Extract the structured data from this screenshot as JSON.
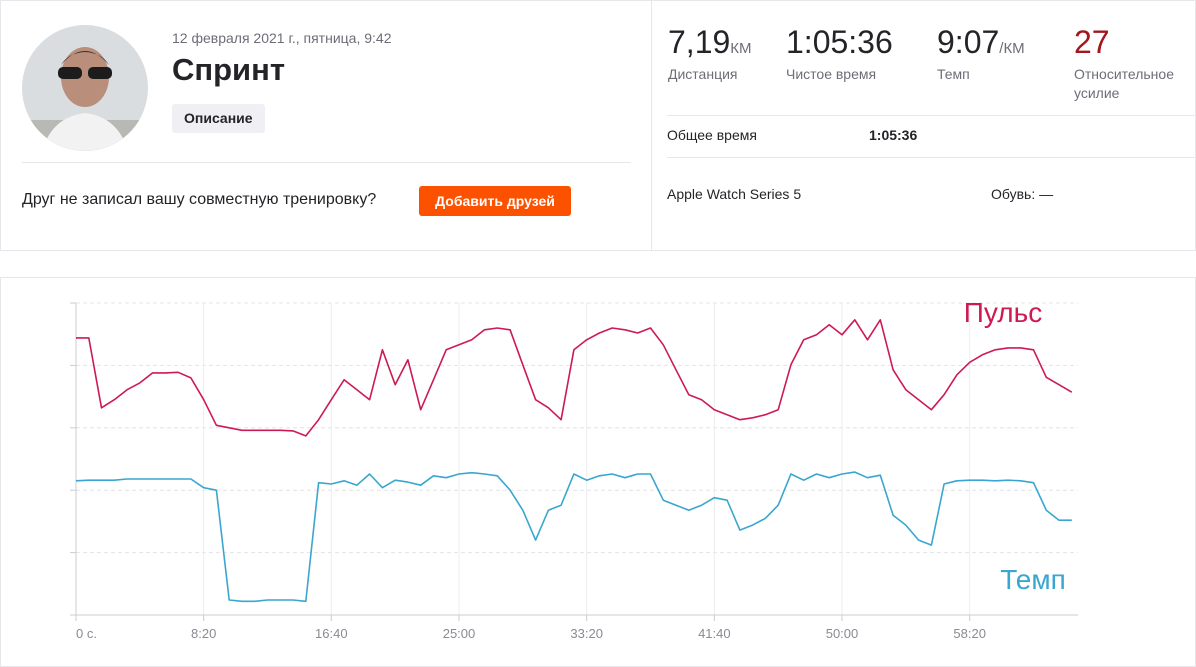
{
  "header": {
    "date": "12 февраля 2021 г., пятница, 9:42",
    "title": "Спринт",
    "description_button": "Описание",
    "prompt": "Друг не записал вашу совместную тренировку?",
    "add_friends_button": "Добавить друзей"
  },
  "stats": [
    {
      "value": "7,19",
      "unit": "КМ",
      "label": "Дистанция"
    },
    {
      "value": "1:05:36",
      "label": "Чистое время"
    },
    {
      "value": "9:07",
      "unit": "/КМ",
      "label": "Темп"
    },
    {
      "value": "27",
      "label": "Относительное усилие"
    }
  ],
  "details": {
    "total_time_label": "Общее время",
    "total_time": "1:05:36",
    "device": "Apple Watch Series 5",
    "shoes_label": "Обувь:",
    "shoes": "—"
  },
  "chart_data": {
    "type": "line",
    "grid": true,
    "x": [
      0,
      50,
      100,
      150,
      200,
      250,
      300,
      350,
      400,
      450,
      500,
      550,
      600,
      650,
      700,
      750,
      800,
      850,
      900,
      950,
      1000,
      1050,
      1100,
      1150,
      1200,
      1250,
      1300,
      1350,
      1400,
      1450,
      1500,
      1550,
      1600,
      1650,
      1700,
      1750,
      1800,
      1850,
      1900,
      1950,
      2000,
      2050,
      2100,
      2150,
      2200,
      2250,
      2300,
      2350,
      2400,
      2450,
      2500,
      2550,
      2600,
      2650,
      2700,
      2750,
      2800,
      2850,
      2900,
      2950,
      3000,
      3050,
      3100,
      3150,
      3200,
      3250,
      3300,
      3350,
      3400,
      3450,
      3500,
      3550,
      3600,
      3650,
      3700,
      3750,
      3800,
      3850,
      3900
    ],
    "xlim": [
      0,
      3936
    ],
    "xticks": [
      {
        "value": 0,
        "label": "0 с."
      },
      {
        "value": 500,
        "label": "8:20"
      },
      {
        "value": 1000,
        "label": "16:40"
      },
      {
        "value": 1500,
        "label": "25:00"
      },
      {
        "value": 2000,
        "label": "33:20"
      },
      {
        "value": 2500,
        "label": "41:40"
      },
      {
        "value": 3000,
        "label": "50:00"
      },
      {
        "value": 3500,
        "label": "58:20"
      }
    ],
    "ylim": [
      0,
      5
    ],
    "yticks": [
      0,
      1,
      2,
      3,
      4,
      5
    ],
    "series": [
      {
        "name": "Пульс",
        "color": "#cc1b52",
        "values": [
          4.44,
          4.44,
          3.32,
          3.45,
          3.61,
          3.72,
          3.88,
          3.88,
          3.89,
          3.8,
          3.45,
          3.04,
          3.0,
          2.96,
          2.96,
          2.96,
          2.96,
          2.95,
          2.87,
          3.13,
          3.45,
          3.77,
          3.61,
          3.45,
          4.25,
          3.69,
          4.09,
          3.29,
          3.77,
          4.25,
          4.33,
          4.41,
          4.57,
          4.6,
          4.57,
          4.01,
          3.45,
          3.32,
          3.13,
          4.25,
          4.41,
          4.52,
          4.6,
          4.57,
          4.52,
          4.6,
          4.33,
          3.93,
          3.53,
          3.45,
          3.29,
          3.21,
          3.13,
          3.16,
          3.21,
          3.29,
          4.01,
          4.41,
          4.49,
          4.65,
          4.49,
          4.73,
          4.41,
          4.73,
          3.93,
          3.61,
          3.45,
          3.29,
          3.53,
          3.85,
          4.05,
          4.17,
          4.25,
          4.28,
          4.28,
          4.25,
          3.81,
          3.69,
          3.57
        ]
      },
      {
        "name": "Темп",
        "color": "#3aa6d0",
        "values": [
          2.15,
          2.16,
          2.16,
          2.16,
          2.18,
          2.18,
          2.18,
          2.18,
          2.18,
          2.18,
          2.04,
          2.0,
          0.24,
          0.22,
          0.22,
          0.24,
          0.24,
          0.24,
          0.22,
          2.12,
          2.1,
          2.15,
          2.08,
          2.26,
          2.04,
          2.16,
          2.13,
          2.08,
          2.23,
          2.2,
          2.26,
          2.28,
          2.26,
          2.23,
          2.0,
          1.68,
          1.2,
          1.68,
          1.76,
          2.26,
          2.16,
          2.23,
          2.26,
          2.2,
          2.26,
          2.26,
          1.84,
          1.76,
          1.68,
          1.76,
          1.88,
          1.84,
          1.36,
          1.44,
          1.55,
          1.76,
          2.26,
          2.16,
          2.26,
          2.2,
          2.26,
          2.29,
          2.2,
          2.24,
          1.6,
          1.44,
          1.2,
          1.12,
          2.1,
          2.15,
          2.16,
          2.16,
          2.15,
          2.16,
          2.15,
          2.12,
          1.68,
          1.52,
          1.52
        ]
      }
    ]
  }
}
